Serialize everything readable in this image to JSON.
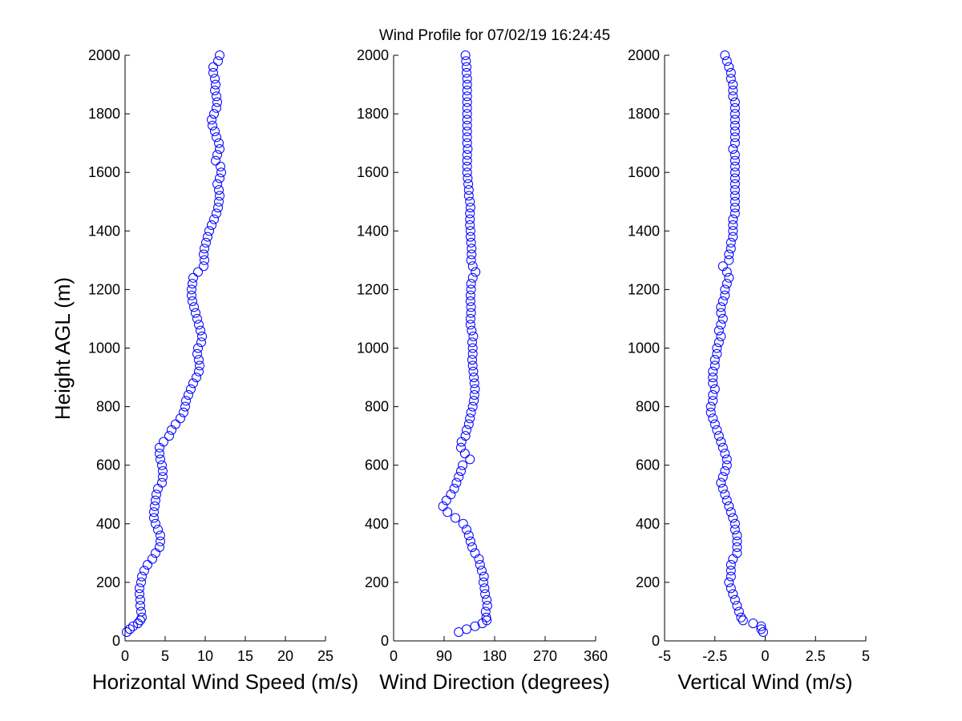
{
  "figure": {
    "title": "Wind Profile for  07/02/19 16:24:45",
    "ylabel": "Height AGL (m)",
    "marker_color": "#0000ff",
    "axis_color": "#000000",
    "background": "#ffffff"
  },
  "chart_data": [
    {
      "type": "scatter",
      "xlabel": "Horizontal Wind Speed (m/s)",
      "ylabel": "Height AGL (m)",
      "xlim": [
        0,
        25
      ],
      "ylim": [
        0,
        2000
      ],
      "xticks": [
        "0",
        "5",
        "10",
        "15",
        "20",
        "25"
      ],
      "yticks": [
        "0",
        "200",
        "400",
        "600",
        "800",
        "1000",
        "1200",
        "1400",
        "1600",
        "1800",
        "2000"
      ],
      "profile": [
        [
          30,
          0.2
        ],
        [
          40,
          0.6
        ],
        [
          50,
          1.0
        ],
        [
          60,
          1.6
        ],
        [
          70,
          1.9
        ],
        [
          80,
          2.1
        ],
        [
          100,
          2.0
        ],
        [
          120,
          1.9
        ],
        [
          140,
          1.9
        ],
        [
          160,
          1.8
        ],
        [
          180,
          1.8
        ],
        [
          200,
          2.0
        ],
        [
          220,
          2.1
        ],
        [
          240,
          2.4
        ],
        [
          260,
          2.8
        ],
        [
          280,
          3.4
        ],
        [
          300,
          3.8
        ],
        [
          320,
          4.3
        ],
        [
          340,
          4.4
        ],
        [
          360,
          4.4
        ],
        [
          380,
          4.1
        ],
        [
          400,
          3.8
        ],
        [
          420,
          3.6
        ],
        [
          440,
          3.6
        ],
        [
          460,
          3.7
        ],
        [
          480,
          3.8
        ],
        [
          500,
          3.9
        ],
        [
          520,
          4.1
        ],
        [
          540,
          4.6
        ],
        [
          560,
          4.7
        ],
        [
          580,
          4.7
        ],
        [
          600,
          4.6
        ],
        [
          620,
          4.4
        ],
        [
          640,
          4.3
        ],
        [
          660,
          4.3
        ],
        [
          680,
          4.8
        ],
        [
          700,
          5.5
        ],
        [
          720,
          5.8
        ],
        [
          740,
          6.3
        ],
        [
          760,
          6.9
        ],
        [
          780,
          7.3
        ],
        [
          800,
          7.5
        ],
        [
          820,
          7.6
        ],
        [
          840,
          7.9
        ],
        [
          860,
          8.2
        ],
        [
          880,
          8.5
        ],
        [
          900,
          8.9
        ],
        [
          920,
          9.2
        ],
        [
          940,
          9.3
        ],
        [
          960,
          9.2
        ],
        [
          980,
          9.0
        ],
        [
          1000,
          9.1
        ],
        [
          1020,
          9.5
        ],
        [
          1040,
          9.6
        ],
        [
          1060,
          9.4
        ],
        [
          1080,
          9.2
        ],
        [
          1100,
          9.0
        ],
        [
          1120,
          8.8
        ],
        [
          1140,
          8.6
        ],
        [
          1160,
          8.4
        ],
        [
          1180,
          8.3
        ],
        [
          1200,
          8.3
        ],
        [
          1220,
          8.4
        ],
        [
          1240,
          8.5
        ],
        [
          1260,
          9.1
        ],
        [
          1280,
          9.8
        ],
        [
          1300,
          9.9
        ],
        [
          1320,
          9.8
        ],
        [
          1340,
          9.9
        ],
        [
          1360,
          10.1
        ],
        [
          1380,
          10.3
        ],
        [
          1400,
          10.5
        ],
        [
          1420,
          10.8
        ],
        [
          1440,
          11.1
        ],
        [
          1460,
          11.4
        ],
        [
          1480,
          11.6
        ],
        [
          1500,
          11.7
        ],
        [
          1520,
          11.8
        ],
        [
          1540,
          11.7
        ],
        [
          1560,
          11.5
        ],
        [
          1580,
          11.8
        ],
        [
          1600,
          12.0
        ],
        [
          1620,
          11.9
        ],
        [
          1640,
          11.3
        ],
        [
          1660,
          11.5
        ],
        [
          1680,
          11.8
        ],
        [
          1700,
          11.7
        ],
        [
          1720,
          11.4
        ],
        [
          1740,
          11.2
        ],
        [
          1760,
          10.9
        ],
        [
          1780,
          10.8
        ],
        [
          1800,
          11.1
        ],
        [
          1820,
          11.4
        ],
        [
          1840,
          11.5
        ],
        [
          1860,
          11.4
        ],
        [
          1880,
          11.2
        ],
        [
          1900,
          11.3
        ],
        [
          1920,
          11.2
        ],
        [
          1940,
          11.0
        ],
        [
          1960,
          11.0
        ],
        [
          1980,
          11.6
        ],
        [
          2000,
          11.8
        ]
      ]
    },
    {
      "type": "scatter",
      "xlabel": "Wind Direction (degrees)",
      "ylabel": "",
      "xlim": [
        0,
        360
      ],
      "ylim": [
        0,
        2000
      ],
      "xticks": [
        "0",
        "90",
        "180",
        "270",
        "360"
      ],
      "yticks": [
        "0",
        "200",
        "400",
        "600",
        "800",
        "1000",
        "1200",
        "1400",
        "1600",
        "1800",
        "2000"
      ],
      "profile": [
        [
          30,
          116
        ],
        [
          40,
          130
        ],
        [
          50,
          145
        ],
        [
          60,
          158
        ],
        [
          70,
          166
        ],
        [
          80,
          165
        ],
        [
          100,
          164
        ],
        [
          120,
          167
        ],
        [
          140,
          166
        ],
        [
          160,
          163
        ],
        [
          180,
          162
        ],
        [
          200,
          160
        ],
        [
          220,
          161
        ],
        [
          240,
          157
        ],
        [
          260,
          154
        ],
        [
          280,
          152
        ],
        [
          300,
          145
        ],
        [
          320,
          140
        ],
        [
          340,
          137
        ],
        [
          360,
          134
        ],
        [
          380,
          130
        ],
        [
          400,
          124
        ],
        [
          420,
          110
        ],
        [
          440,
          96
        ],
        [
          460,
          88
        ],
        [
          480,
          94
        ],
        [
          500,
          102
        ],
        [
          520,
          108
        ],
        [
          540,
          112
        ],
        [
          560,
          116
        ],
        [
          580,
          120
        ],
        [
          600,
          123
        ],
        [
          620,
          136
        ],
        [
          640,
          127
        ],
        [
          660,
          120
        ],
        [
          680,
          121
        ],
        [
          700,
          128
        ],
        [
          720,
          130
        ],
        [
          740,
          134
        ],
        [
          760,
          136
        ],
        [
          780,
          138
        ],
        [
          800,
          141
        ],
        [
          820,
          143
        ],
        [
          840,
          144
        ],
        [
          860,
          145
        ],
        [
          880,
          144
        ],
        [
          900,
          143
        ],
        [
          920,
          142
        ],
        [
          940,
          141
        ],
        [
          960,
          140
        ],
        [
          980,
          141
        ],
        [
          1000,
          141
        ],
        [
          1020,
          140
        ],
        [
          1040,
          142
        ],
        [
          1060,
          139
        ],
        [
          1080,
          137
        ],
        [
          1100,
          137
        ],
        [
          1120,
          138
        ],
        [
          1140,
          138
        ],
        [
          1160,
          137
        ],
        [
          1180,
          137
        ],
        [
          1200,
          138
        ],
        [
          1220,
          138
        ],
        [
          1240,
          141
        ],
        [
          1260,
          146
        ],
        [
          1280,
          141
        ],
        [
          1300,
          138
        ],
        [
          1320,
          139
        ],
        [
          1340,
          139
        ],
        [
          1360,
          138
        ],
        [
          1380,
          137
        ],
        [
          1400,
          137
        ],
        [
          1420,
          136
        ],
        [
          1440,
          136
        ],
        [
          1460,
          136
        ],
        [
          1480,
          137
        ],
        [
          1500,
          136
        ],
        [
          1520,
          134
        ],
        [
          1540,
          134
        ],
        [
          1560,
          133
        ],
        [
          1580,
          132
        ],
        [
          1600,
          131
        ],
        [
          1620,
          131
        ],
        [
          1640,
          131
        ],
        [
          1660,
          131
        ],
        [
          1680,
          132
        ],
        [
          1700,
          131
        ],
        [
          1720,
          131
        ],
        [
          1740,
          131
        ],
        [
          1760,
          131
        ],
        [
          1780,
          131
        ],
        [
          1800,
          131
        ],
        [
          1820,
          131
        ],
        [
          1840,
          131
        ],
        [
          1860,
          131
        ],
        [
          1880,
          131
        ],
        [
          1900,
          131
        ],
        [
          1920,
          131
        ],
        [
          1940,
          130
        ],
        [
          1960,
          130
        ],
        [
          1980,
          129
        ],
        [
          2000,
          128
        ]
      ]
    },
    {
      "type": "scatter",
      "xlabel": "Vertical Wind (m/s)",
      "ylabel": "",
      "xlim": [
        -5,
        5
      ],
      "ylim": [
        0,
        2000
      ],
      "xticks": [
        "-5",
        "-2.5",
        "0",
        "2.5",
        "5"
      ],
      "yticks": [
        "0",
        "200",
        "400",
        "600",
        "800",
        "1000",
        "1200",
        "1400",
        "1600",
        "1800",
        "2000"
      ],
      "profile": [
        [
          30,
          -0.1
        ],
        [
          40,
          -0.2
        ],
        [
          50,
          -0.2
        ],
        [
          60,
          -0.6
        ],
        [
          70,
          -1.1
        ],
        [
          80,
          -1.2
        ],
        [
          100,
          -1.3
        ],
        [
          120,
          -1.4
        ],
        [
          140,
          -1.5
        ],
        [
          160,
          -1.6
        ],
        [
          180,
          -1.7
        ],
        [
          200,
          -1.8
        ],
        [
          220,
          -1.7
        ],
        [
          240,
          -1.7
        ],
        [
          260,
          -1.7
        ],
        [
          280,
          -1.6
        ],
        [
          300,
          -1.4
        ],
        [
          320,
          -1.4
        ],
        [
          340,
          -1.4
        ],
        [
          360,
          -1.4
        ],
        [
          380,
          -1.5
        ],
        [
          400,
          -1.5
        ],
        [
          420,
          -1.6
        ],
        [
          440,
          -1.7
        ],
        [
          460,
          -1.8
        ],
        [
          480,
          -1.9
        ],
        [
          500,
          -2.0
        ],
        [
          520,
          -2.1
        ],
        [
          540,
          -2.2
        ],
        [
          560,
          -2.1
        ],
        [
          580,
          -2.0
        ],
        [
          600,
          -1.9
        ],
        [
          620,
          -1.9
        ],
        [
          640,
          -2.0
        ],
        [
          660,
          -2.1
        ],
        [
          680,
          -2.2
        ],
        [
          700,
          -2.3
        ],
        [
          720,
          -2.4
        ],
        [
          740,
          -2.5
        ],
        [
          760,
          -2.6
        ],
        [
          780,
          -2.7
        ],
        [
          800,
          -2.7
        ],
        [
          820,
          -2.6
        ],
        [
          840,
          -2.6
        ],
        [
          860,
          -2.5
        ],
        [
          880,
          -2.6
        ],
        [
          900,
          -2.6
        ],
        [
          920,
          -2.6
        ],
        [
          940,
          -2.5
        ],
        [
          960,
          -2.5
        ],
        [
          980,
          -2.4
        ],
        [
          1000,
          -2.4
        ],
        [
          1020,
          -2.3
        ],
        [
          1040,
          -2.2
        ],
        [
          1060,
          -2.3
        ],
        [
          1080,
          -2.2
        ],
        [
          1100,
          -2.1
        ],
        [
          1120,
          -2.2
        ],
        [
          1140,
          -2.2
        ],
        [
          1160,
          -2.1
        ],
        [
          1180,
          -2.0
        ],
        [
          1200,
          -2.0
        ],
        [
          1220,
          -1.9
        ],
        [
          1240,
          -1.8
        ],
        [
          1260,
          -1.9
        ],
        [
          1280,
          -2.1
        ],
        [
          1300,
          -1.8
        ],
        [
          1320,
          -1.8
        ],
        [
          1340,
          -1.7
        ],
        [
          1360,
          -1.7
        ],
        [
          1380,
          -1.6
        ],
        [
          1400,
          -1.6
        ],
        [
          1420,
          -1.6
        ],
        [
          1440,
          -1.6
        ],
        [
          1460,
          -1.5
        ],
        [
          1480,
          -1.5
        ],
        [
          1500,
          -1.5
        ],
        [
          1520,
          -1.5
        ],
        [
          1540,
          -1.5
        ],
        [
          1560,
          -1.5
        ],
        [
          1580,
          -1.5
        ],
        [
          1600,
          -1.5
        ],
        [
          1620,
          -1.5
        ],
        [
          1640,
          -1.5
        ],
        [
          1660,
          -1.5
        ],
        [
          1680,
          -1.6
        ],
        [
          1700,
          -1.5
        ],
        [
          1720,
          -1.5
        ],
        [
          1740,
          -1.5
        ],
        [
          1760,
          -1.5
        ],
        [
          1780,
          -1.5
        ],
        [
          1800,
          -1.5
        ],
        [
          1820,
          -1.5
        ],
        [
          1840,
          -1.5
        ],
        [
          1860,
          -1.6
        ],
        [
          1880,
          -1.6
        ],
        [
          1900,
          -1.6
        ],
        [
          1920,
          -1.7
        ],
        [
          1940,
          -1.7
        ],
        [
          1960,
          -1.8
        ],
        [
          1980,
          -1.9
        ],
        [
          2000,
          -2.0
        ]
      ]
    }
  ]
}
